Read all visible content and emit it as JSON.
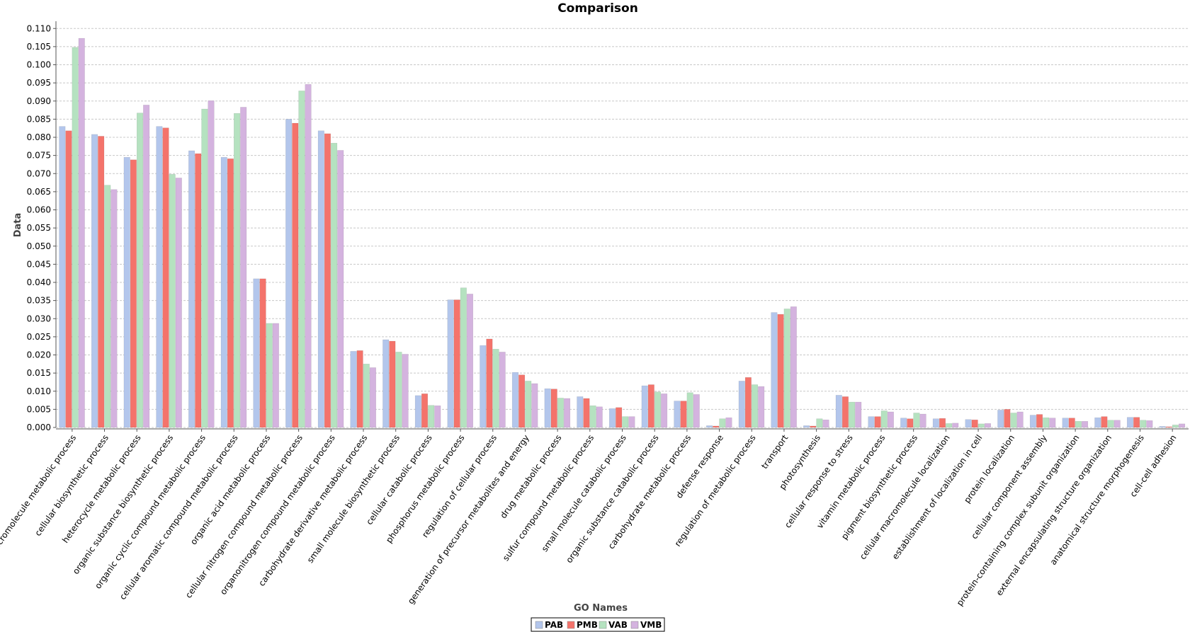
{
  "chart_data": {
    "type": "bar",
    "title": "Comparison",
    "xlabel": "GO Names",
    "ylabel": "Data",
    "ylim": [
      0,
      0.112
    ],
    "yticks": [
      "0.000",
      "0.005",
      "0.010",
      "0.015",
      "0.020",
      "0.025",
      "0.030",
      "0.035",
      "0.040",
      "0.045",
      "0.050",
      "0.055",
      "0.060",
      "0.065",
      "0.070",
      "0.075",
      "0.080",
      "0.085",
      "0.090",
      "0.095",
      "0.100",
      "0.105",
      "0.110"
    ],
    "grid": true,
    "legend_position": "bottom",
    "categories": [
      "macromolecule metabolic process",
      "cellular biosynthetic process",
      "heterocycle metabolic process",
      "organic substance biosynthetic process",
      "organic cyclic compound metabolic process",
      "cellular aromatic compound metabolic process",
      "organic acid metabolic process",
      "cellular nitrogen compound metabolic process",
      "organonitrogen compound metabolic process",
      "carbohydrate derivative metabolic process",
      "small molecule biosynthetic process",
      "cellular catabolic process",
      "phosphorus metabolic process",
      "regulation of cellular process",
      "generation of precursor metabolites and energy",
      "drug metabolic process",
      "sulfur compound metabolic process",
      "small molecule catabolic process",
      "organic substance catabolic process",
      "carbohydrate metabolic process",
      "defense response",
      "regulation of metabolic process",
      "transport",
      "photosynthesis",
      "cellular response to stress",
      "vitamin metabolic process",
      "pigment biosynthetic process",
      "cellular macromolecule localization",
      "establishment of localization in cell",
      "protein localization",
      "cellular component assembly",
      "protein-containing complex subunit organization",
      "external encapsulating structure organization",
      "anatomical structure morphogenesis",
      "cell-cell adhesion"
    ],
    "series": [
      {
        "name": "PAB",
        "color": "#b3c6ec",
        "values": [
          0.083,
          0.0808,
          0.0745,
          0.083,
          0.0763,
          0.0745,
          0.041,
          0.085,
          0.0818,
          0.021,
          0.0242,
          0.0088,
          0.0352,
          0.0226,
          0.0152,
          0.0107,
          0.0085,
          0.0052,
          0.0115,
          0.0073,
          0.0005,
          0.0128,
          0.0317,
          0.0005,
          0.0089,
          0.003,
          0.0026,
          0.0024,
          0.0022,
          0.0048,
          0.0034,
          0.0026,
          0.0027,
          0.0028,
          0.0003
        ]
      },
      {
        "name": "PMB",
        "color": "#f4736b",
        "values": [
          0.0818,
          0.0803,
          0.0738,
          0.0826,
          0.0755,
          0.0741,
          0.041,
          0.0839,
          0.081,
          0.0212,
          0.0238,
          0.0093,
          0.0352,
          0.0244,
          0.0145,
          0.0106,
          0.008,
          0.0055,
          0.0118,
          0.0073,
          0.0004,
          0.0138,
          0.0312,
          0.0004,
          0.0085,
          0.003,
          0.0024,
          0.0025,
          0.0021,
          0.005,
          0.0036,
          0.0026,
          0.003,
          0.0028,
          0.0002
        ]
      },
      {
        "name": "VAB",
        "color": "#b5e2c0",
        "values": [
          0.1048,
          0.0668,
          0.0867,
          0.0698,
          0.0878,
          0.0866,
          0.0287,
          0.0928,
          0.0784,
          0.0175,
          0.0208,
          0.0061,
          0.0385,
          0.0216,
          0.0128,
          0.0081,
          0.006,
          0.003,
          0.0098,
          0.0096,
          0.0024,
          0.0118,
          0.0327,
          0.0024,
          0.007,
          0.0046,
          0.004,
          0.0011,
          0.001,
          0.004,
          0.0027,
          0.0017,
          0.002,
          0.002,
          0.0007
        ]
      },
      {
        "name": "VMB",
        "color": "#d4b3df",
        "values": [
          0.1073,
          0.0656,
          0.0889,
          0.0688,
          0.0901,
          0.0883,
          0.0287,
          0.0946,
          0.0764,
          0.0165,
          0.0202,
          0.006,
          0.0368,
          0.0208,
          0.0121,
          0.008,
          0.0057,
          0.003,
          0.0093,
          0.0091,
          0.0027,
          0.0113,
          0.0333,
          0.0021,
          0.007,
          0.0043,
          0.0037,
          0.0012,
          0.0011,
          0.0043,
          0.0026,
          0.0017,
          0.002,
          0.0019,
          0.001
        ]
      }
    ]
  }
}
